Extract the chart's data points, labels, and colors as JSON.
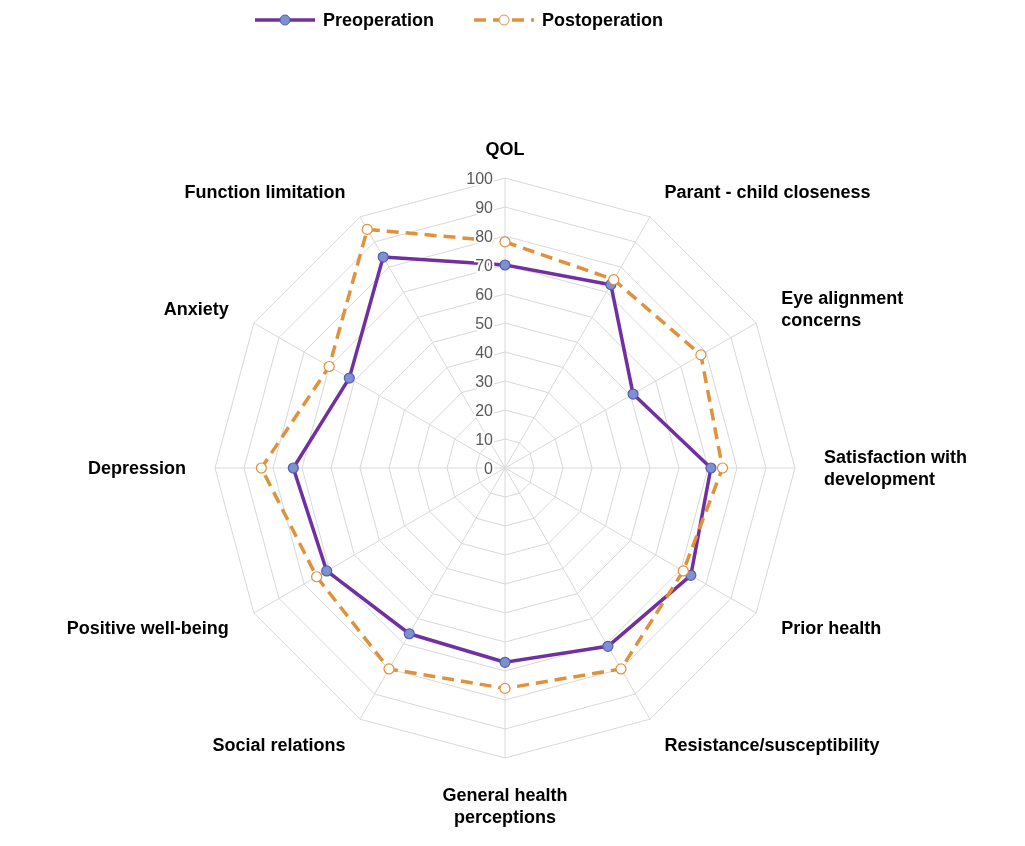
{
  "chart_data": {
    "type": "radar",
    "categories": [
      "QOL",
      "Parant - child closeness",
      "Eye alignment concerns",
      "Satisfaction with development",
      "Prior health",
      "Resistance/susceptibility",
      "General health perceptions",
      "Social relations",
      "Positive well-being",
      "Depression",
      "Anxiety",
      "Function limitation"
    ],
    "series": [
      {
        "name": "Preoperation",
        "color": "#7030a0",
        "line_style": "solid",
        "values": [
          70,
          73,
          51,
          71,
          74,
          71,
          67,
          66,
          71,
          73,
          62,
          84
        ]
      },
      {
        "name": "Postoperation",
        "color": "#e0913c",
        "line_style": "dashed",
        "values": [
          78,
          75,
          78,
          75,
          71,
          80,
          76,
          80,
          75,
          84,
          70,
          95
        ]
      }
    ],
    "ylim": [
      0,
      100
    ],
    "yticks": [
      0,
      10,
      20,
      30,
      40,
      50,
      60,
      70,
      80,
      90,
      100
    ],
    "grid": true,
    "legend": "top",
    "marker": "circle"
  }
}
